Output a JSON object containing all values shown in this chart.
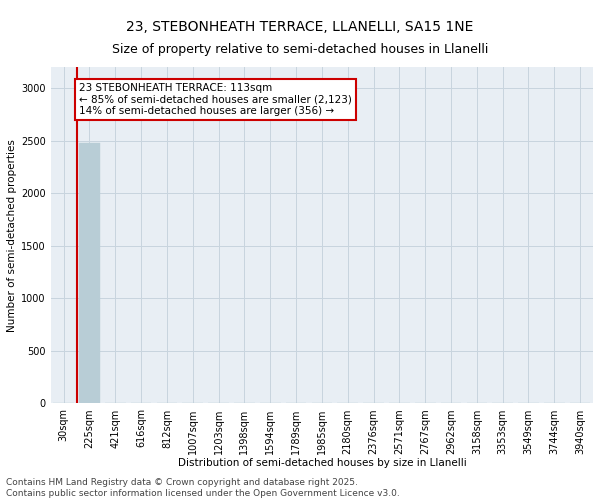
{
  "title": "23, STEBONHEATH TERRACE, LLANELLI, SA15 1NE",
  "subtitle": "Size of property relative to semi-detached houses in Llanelli",
  "xlabel": "Distribution of semi-detached houses by size in Llanelli",
  "ylabel": "Number of semi-detached properties",
  "annotation_line1": "23 STEBONHEATH TERRACE: 113sqm",
  "annotation_line2": "← 85% of semi-detached houses are smaller (2,123)",
  "annotation_line3": "14% of semi-detached houses are larger (356) →",
  "footer_line1": "Contains HM Land Registry data © Crown copyright and database right 2025.",
  "footer_line2": "Contains public sector information licensed under the Open Government Licence v3.0.",
  "categories": [
    "30sqm",
    "225sqm",
    "421sqm",
    "616sqm",
    "812sqm",
    "1007sqm",
    "1203sqm",
    "1398sqm",
    "1594sqm",
    "1789sqm",
    "1985sqm",
    "2180sqm",
    "2376sqm",
    "2571sqm",
    "2767sqm",
    "2962sqm",
    "3158sqm",
    "3353sqm",
    "3549sqm",
    "3744sqm",
    "3940sqm"
  ],
  "bar_heights": [
    0,
    2479,
    4,
    0,
    0,
    0,
    0,
    0,
    0,
    0,
    0,
    0,
    0,
    0,
    0,
    0,
    0,
    0,
    0,
    0,
    0
  ],
  "bar_color": "#b8cdd6",
  "bar_edge_color": "#b8cdd6",
  "ylim": [
    0,
    3200
  ],
  "yticks": [
    0,
    500,
    1000,
    1500,
    2000,
    2500,
    3000
  ],
  "annotation_box_color": "#cc0000",
  "property_line_color": "#cc0000",
  "grid_color": "#c8d4de",
  "background_color": "#e8eef4",
  "title_fontsize": 10,
  "subtitle_fontsize": 9,
  "axis_label_fontsize": 7.5,
  "tick_fontsize": 7,
  "annotation_fontsize": 7.5,
  "footer_fontsize": 6.5,
  "property_line_x": 0.5
}
